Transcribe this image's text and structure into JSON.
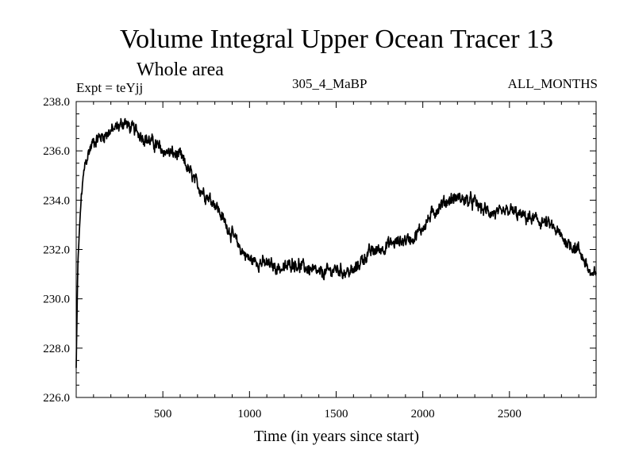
{
  "chart_data": {
    "type": "line",
    "title": "Volume Integral Upper Ocean Tracer 13",
    "subtitle": "Whole area",
    "annotations": {
      "experiment": "Expt = teYjj",
      "run": "305_4_MaBP",
      "months": "ALL_MONTHS"
    },
    "xlabel": "Time (in years since start)",
    "ylabel": "",
    "xlim": [
      0,
      3000
    ],
    "ylim": [
      226.0,
      238.0
    ],
    "x_ticks": [
      500,
      1000,
      1500,
      2000,
      2500
    ],
    "x_tick_labels": [
      "500",
      "1000",
      "1500",
      "2000",
      "2500"
    ],
    "y_ticks": [
      226.0,
      228.0,
      230.0,
      232.0,
      234.0,
      236.0,
      238.0
    ],
    "y_tick_labels": [
      "226.0",
      "228.0",
      "230.0",
      "232.0",
      "234.0",
      "236.0",
      "238.0"
    ],
    "series": [
      {
        "name": "Tracer 13",
        "x": [
          0,
          5,
          10,
          20,
          30,
          50,
          75,
          100,
          150,
          200,
          250,
          280,
          300,
          350,
          400,
          450,
          500,
          550,
          600,
          650,
          700,
          750,
          800,
          850,
          900,
          950,
          1000,
          1050,
          1100,
          1150,
          1200,
          1250,
          1300,
          1350,
          1400,
          1450,
          1500,
          1550,
          1600,
          1650,
          1700,
          1750,
          1800,
          1850,
          1900,
          1950,
          2000,
          2050,
          2100,
          2150,
          2200,
          2250,
          2300,
          2350,
          2400,
          2450,
          2500,
          2550,
          2600,
          2650,
          2700,
          2750,
          2800,
          2850,
          2900,
          2950,
          2980,
          3000
        ],
        "y": [
          227.2,
          229.5,
          231.5,
          233.0,
          234.2,
          235.4,
          236.0,
          236.4,
          236.6,
          236.8,
          237.0,
          237.2,
          237.0,
          236.8,
          236.5,
          236.3,
          236.0,
          235.9,
          235.8,
          235.2,
          234.6,
          234.2,
          233.9,
          233.2,
          232.6,
          232.0,
          231.6,
          231.5,
          231.4,
          231.3,
          231.2,
          231.5,
          231.3,
          231.2,
          231.0,
          231.1,
          231.2,
          231.1,
          231.1,
          231.6,
          231.9,
          232.0,
          232.2,
          232.3,
          232.4,
          232.5,
          232.9,
          233.4,
          233.8,
          234.0,
          234.1,
          234.0,
          233.9,
          233.6,
          233.5,
          233.4,
          233.6,
          233.4,
          233.3,
          233.2,
          233.1,
          232.9,
          232.5,
          232.2,
          232.0,
          231.3,
          230.8,
          231.2
        ]
      }
    ],
    "grid": false,
    "legend": "none",
    "line_color": "#000000"
  }
}
